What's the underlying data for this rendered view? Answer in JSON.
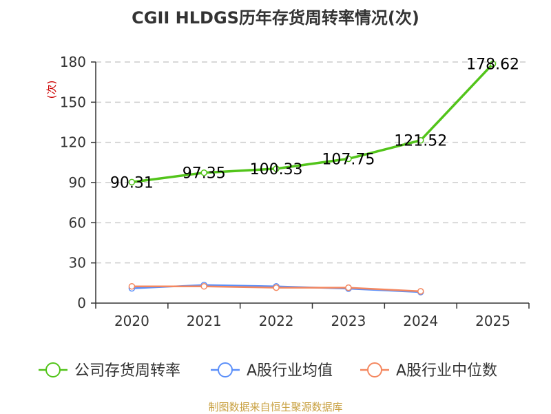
{
  "title": "CGII HLDGS历年存货周转率情况(次)",
  "source": "制图数据来自恒生聚源数据库",
  "chart_data": {
    "type": "line",
    "title": "CGII HLDGS历年存货周转率情况(次)",
    "ylabel": "(次)",
    "xlabel": "",
    "categories": [
      "2020",
      "2021",
      "2022",
      "2023",
      "2024",
      "2025"
    ],
    "ylim": [
      0,
      180
    ],
    "yticks": [
      0,
      30,
      60,
      90,
      120,
      150,
      180
    ],
    "grid": true,
    "legend_position": "bottom",
    "series": [
      {
        "name": "公司存货周转率",
        "color": "#52c41a",
        "values": [
          90.31,
          97.35,
          100.33,
          107.75,
          121.52,
          178.62
        ],
        "labels": [
          "90.31",
          "97.35",
          "100.33",
          "107.75",
          "121.52",
          "178.62"
        ]
      },
      {
        "name": "A股行业均值",
        "color": "#5b8ff9",
        "values": [
          11.0,
          13.5,
          12.5,
          10.8,
          8.2,
          null
        ]
      },
      {
        "name": "A股行业中位数",
        "color": "#f4875f",
        "values": [
          12.5,
          12.5,
          11.5,
          11.5,
          8.8,
          null
        ]
      }
    ]
  }
}
